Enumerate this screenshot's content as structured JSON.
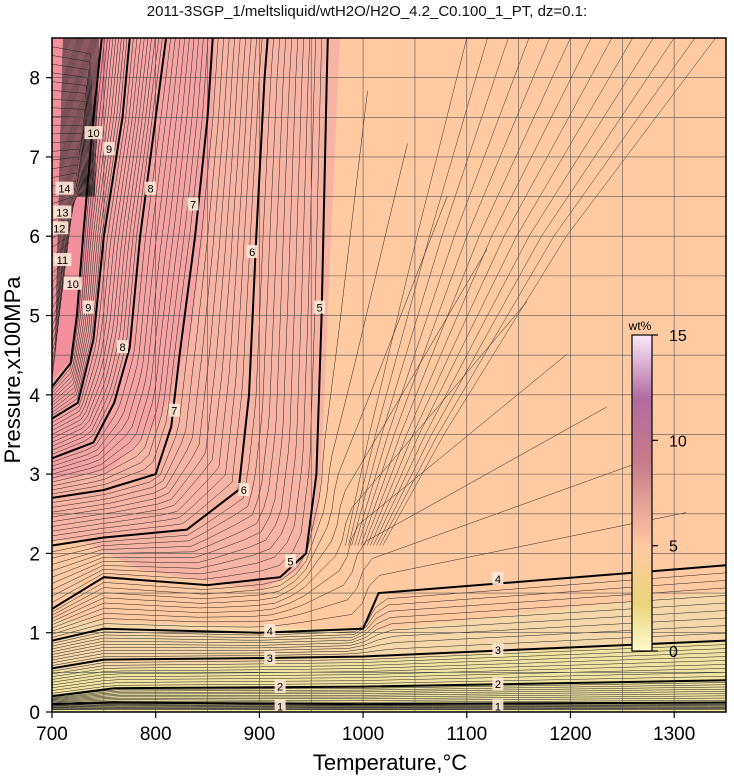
{
  "chart_data": {
    "type": "contour",
    "title": "2011-3SGP_1/meltsliquid/wtH2O/H2O_4.2_C0.100_1_PT, dz=0.1:",
    "xlabel": "Temperature,°C",
    "ylabel": "Pressure,x100MPa",
    "xlim": [
      700,
      1350
    ],
    "ylim": [
      0,
      8.5
    ],
    "x_ticks": [
      "700",
      "800",
      "900",
      "1000",
      "1100",
      "1200",
      "1300"
    ],
    "y_ticks": [
      "0",
      "1",
      "2",
      "3",
      "4",
      "5",
      "6",
      "7",
      "8"
    ],
    "grid": true,
    "colorbar": {
      "unit": "wt%",
      "ticks": [
        "0",
        "5",
        "10",
        "15"
      ],
      "range": [
        0,
        15
      ],
      "placement": "inside-right"
    },
    "contours": [
      {
        "level": "1",
        "points": [
          [
            700,
            0.1
          ],
          [
            760,
            0.12
          ],
          [
            1000,
            0.1
          ],
          [
            1350,
            0.12
          ]
        ]
      },
      {
        "level": "2",
        "points": [
          [
            700,
            0.2
          ],
          [
            760,
            0.3
          ],
          [
            1000,
            0.32
          ],
          [
            1350,
            0.4
          ]
        ]
      },
      {
        "level": "3",
        "points": [
          [
            700,
            0.55
          ],
          [
            750,
            0.66
          ],
          [
            900,
            0.68
          ],
          [
            1000,
            0.7
          ],
          [
            1350,
            0.9
          ]
        ]
      },
      {
        "level": "4",
        "points": [
          [
            700,
            0.9
          ],
          [
            750,
            1.05
          ],
          [
            900,
            1.0
          ],
          [
            1000,
            1.05
          ],
          [
            1015,
            1.5
          ],
          [
            1350,
            1.85
          ]
        ]
      },
      {
        "level": "5",
        "points": [
          [
            700,
            1.3
          ],
          [
            750,
            1.7
          ],
          [
            850,
            1.6
          ],
          [
            920,
            1.7
          ],
          [
            945,
            2.0
          ],
          [
            955,
            3.0
          ],
          [
            960,
            5.0
          ],
          [
            965,
            8.0
          ],
          [
            966,
            8.5
          ]
        ]
      },
      {
        "level": "6",
        "points": [
          [
            700,
            2.1
          ],
          [
            750,
            2.2
          ],
          [
            830,
            2.3
          ],
          [
            880,
            2.8
          ],
          [
            890,
            4.0
          ],
          [
            897,
            6.0
          ],
          [
            905,
            8.0
          ],
          [
            908,
            8.5
          ]
        ]
      },
      {
        "level": "7",
        "points": [
          [
            700,
            2.7
          ],
          [
            750,
            2.8
          ],
          [
            800,
            3.0
          ],
          [
            815,
            3.6
          ],
          [
            823,
            4.5
          ],
          [
            838,
            6.0
          ],
          [
            850,
            7.5
          ],
          [
            855,
            8.5
          ]
        ]
      },
      {
        "level": "8",
        "points": [
          [
            700,
            3.2
          ],
          [
            740,
            3.4
          ],
          [
            760,
            3.9
          ],
          [
            775,
            4.6
          ],
          [
            785,
            6.0
          ],
          [
            800,
            7.5
          ],
          [
            810,
            8.5
          ]
        ]
      },
      {
        "level": "9",
        "points": [
          [
            700,
            3.7
          ],
          [
            725,
            3.9
          ],
          [
            740,
            4.7
          ],
          [
            750,
            6.0
          ],
          [
            768,
            7.5
          ],
          [
            775,
            8.5
          ]
        ]
      },
      {
        "level": "10",
        "points": [
          [
            700,
            4.1
          ],
          [
            718,
            4.4
          ],
          [
            724,
            5.0
          ],
          [
            730,
            6.0
          ],
          [
            740,
            7.5
          ],
          [
            748,
            8.5
          ]
        ]
      }
    ],
    "contour_labels": [
      {
        "text": "1",
        "x": 920,
        "y": 0.07
      },
      {
        "text": "1",
        "x": 1130,
        "y": 0.07
      },
      {
        "text": "2",
        "x": 920,
        "y": 0.32
      },
      {
        "text": "2",
        "x": 1130,
        "y": 0.35
      },
      {
        "text": "3",
        "x": 910,
        "y": 0.68
      },
      {
        "text": "3",
        "x": 1130,
        "y": 0.78
      },
      {
        "text": "4",
        "x": 910,
        "y": 1.02
      },
      {
        "text": "4",
        "x": 1130,
        "y": 1.68
      },
      {
        "text": "5",
        "x": 930,
        "y": 1.9
      },
      {
        "text": "5",
        "x": 958,
        "y": 5.1
      },
      {
        "text": "6",
        "x": 885,
        "y": 2.8
      },
      {
        "text": "6",
        "x": 893,
        "y": 5.8
      },
      {
        "text": "7",
        "x": 818,
        "y": 3.8
      },
      {
        "text": "7",
        "x": 836,
        "y": 6.4
      },
      {
        "text": "8",
        "x": 768,
        "y": 4.6
      },
      {
        "text": "8",
        "x": 795,
        "y": 6.6
      },
      {
        "text": "9",
        "x": 735,
        "y": 5.1
      },
      {
        "text": "9",
        "x": 755,
        "y": 7.1
      },
      {
        "text": "10",
        "x": 720,
        "y": 5.4
      },
      {
        "text": "10",
        "x": 740,
        "y": 7.3
      },
      {
        "text": "11",
        "x": 710,
        "y": 5.7
      },
      {
        "text": "12",
        "x": 707,
        "y": 6.1
      },
      {
        "text": "13",
        "x": 710,
        "y": 6.3
      },
      {
        "text": "14",
        "x": 712,
        "y": 6.6
      }
    ],
    "colors": {
      "high": "#f4a0a4",
      "mid": "#ffc9a2",
      "low": "#f1e3a2"
    }
  }
}
